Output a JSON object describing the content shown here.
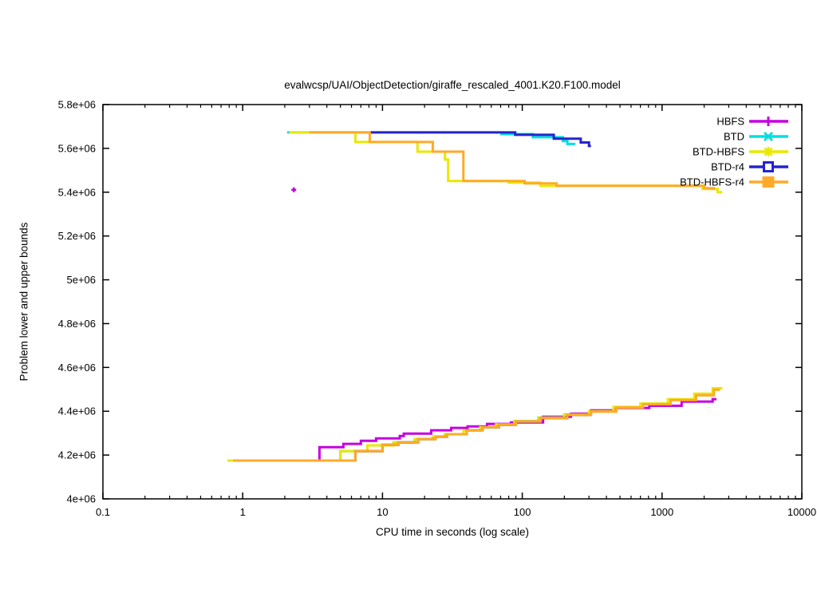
{
  "page": {
    "background": "#ffffff"
  },
  "chart_data": {
    "type": "line",
    "title": "evalwcsp/UAI/ObjectDetection/giraffe_rescaled_4001.K20.F100.model",
    "xlabel": "CPU time in seconds (log scale)",
    "ylabel": "Problem lower and upper bounds",
    "x_scale": "log",
    "xlim": [
      0.1,
      10000
    ],
    "ylim": [
      4000000,
      5800000
    ],
    "grid": false,
    "legend_position": "top-right-inside",
    "axis_color": "#000000",
    "text_color": "#000000",
    "x_ticks": [
      {
        "value": 0.1,
        "label": "0.1"
      },
      {
        "value": 1,
        "label": "1"
      },
      {
        "value": 10,
        "label": "10"
      },
      {
        "value": 100,
        "label": "100"
      },
      {
        "value": 1000,
        "label": "1000"
      },
      {
        "value": 10000,
        "label": "10000"
      }
    ],
    "x_minor_multiples": [
      2,
      3,
      4,
      5,
      6,
      7,
      8,
      9
    ],
    "y_ticks": [
      {
        "value": 4000000,
        "label": "4e+06"
      },
      {
        "value": 4200000,
        "label": "4.2e+06"
      },
      {
        "value": 4400000,
        "label": "4.4e+06"
      },
      {
        "value": 4600000,
        "label": "4.6e+06"
      },
      {
        "value": 4800000,
        "label": "4.8e+06"
      },
      {
        "value": 5000000,
        "label": "5e+06"
      },
      {
        "value": 5200000,
        "label": "5.2e+06"
      },
      {
        "value": 5400000,
        "label": "5.4e+06"
      },
      {
        "value": 5600000,
        "label": "5.6e+06"
      },
      {
        "value": 5800000,
        "label": "5.8e+06"
      }
    ],
    "notes": "Each method plots a stepped upper bound (top curves, ~5.67e6 descending) and a stepped lower bound (bottom curves rising from ~4.175e6). HBFS shows only a single upper-bound point near 2.3s at ~5.41e6. BTD and BTD-r4 lower bounds are overlapped (hidden) by BTD-HBFS and BTD-HBFS-r4 respectively.",
    "series": [
      {
        "name": "HBFS",
        "color": "#c400e0",
        "marker": "plus",
        "upper_point": [
          2.32,
          5411000
        ],
        "lower": [
          [
            2.3,
            4175000
          ],
          [
            3.54,
            4175000
          ],
          [
            3.54,
            4236000
          ],
          [
            5.25,
            4236000
          ],
          [
            5.25,
            4251000
          ],
          [
            7,
            4251000
          ],
          [
            7,
            4265000
          ],
          [
            9,
            4265000
          ],
          [
            9,
            4276000
          ],
          [
            13.3,
            4276000
          ],
          [
            13.3,
            4287000
          ],
          [
            14.2,
            4287000
          ],
          [
            14.2,
            4298000
          ],
          [
            22.3,
            4298000
          ],
          [
            22.3,
            4313000
          ],
          [
            31,
            4313000
          ],
          [
            31,
            4324000
          ],
          [
            40.6,
            4324000
          ],
          [
            40.6,
            4331000
          ],
          [
            56,
            4331000
          ],
          [
            56,
            4342000
          ],
          [
            83,
            4342000
          ],
          [
            83,
            4349000
          ],
          [
            141,
            4349000
          ],
          [
            141,
            4375000
          ],
          [
            223,
            4375000
          ],
          [
            223,
            4389000
          ],
          [
            310,
            4389000
          ],
          [
            310,
            4404000
          ],
          [
            460,
            4404000
          ],
          [
            460,
            4415000
          ],
          [
            810,
            4415000
          ],
          [
            810,
            4425000
          ],
          [
            1380,
            4425000
          ],
          [
            1380,
            4444000
          ],
          [
            2300,
            4444000
          ],
          [
            2300,
            4455000
          ],
          [
            2450,
            4455000
          ]
        ]
      },
      {
        "name": "BTD",
        "color": "#00e0e0",
        "marker": "cross",
        "upper": [
          [
            2.08,
            5673000
          ],
          [
            71,
            5673000
          ],
          [
            71,
            5665000
          ],
          [
            119,
            5665000
          ],
          [
            119,
            5651000
          ],
          [
            195,
            5651000
          ],
          [
            195,
            5633000
          ],
          [
            210,
            5633000
          ],
          [
            210,
            5620000
          ],
          [
            240,
            5620000
          ]
        ],
        "lower": [
          [
            0.78,
            4175000
          ],
          [
            5,
            4175000
          ],
          [
            5,
            4218000
          ],
          [
            7.8,
            4218000
          ],
          [
            7.8,
            4244000
          ],
          [
            12,
            4244000
          ],
          [
            12,
            4258000
          ],
          [
            17,
            4258000
          ],
          [
            17,
            4273000
          ],
          [
            23,
            4273000
          ],
          [
            23,
            4284000
          ],
          [
            28,
            4284000
          ],
          [
            28,
            4295000
          ],
          [
            38,
            4295000
          ],
          [
            38,
            4313000
          ],
          [
            50,
            4313000
          ],
          [
            50,
            4327000
          ],
          [
            65,
            4327000
          ],
          [
            65,
            4340000
          ],
          [
            88,
            4340000
          ],
          [
            88,
            4355000
          ],
          [
            130,
            4355000
          ],
          [
            130,
            4371000
          ],
          [
            200,
            4371000
          ],
          [
            200,
            4385000
          ],
          [
            235,
            4385000
          ]
        ],
        "lower_hidden_under": "BTD-HBFS"
      },
      {
        "name": "BTD-HBFS",
        "color": "#e8e800",
        "marker": "star",
        "upper": [
          [
            2.15,
            5673000
          ],
          [
            6.4,
            5673000
          ],
          [
            6.4,
            5629000
          ],
          [
            17.8,
            5629000
          ],
          [
            17.8,
            5585000
          ],
          [
            28,
            5585000
          ],
          [
            28,
            5549000
          ],
          [
            29.5,
            5549000
          ],
          [
            29.5,
            5451000
          ],
          [
            80,
            5451000
          ],
          [
            80,
            5444000
          ],
          [
            135,
            5444000
          ],
          [
            135,
            5429000
          ],
          [
            1950,
            5429000
          ],
          [
            1950,
            5415000
          ],
          [
            2500,
            5415000
          ],
          [
            2500,
            5400000
          ],
          [
            2700,
            5400000
          ]
        ],
        "lower": [
          [
            0.78,
            4175000
          ],
          [
            5,
            4175000
          ],
          [
            5,
            4218000
          ],
          [
            7.8,
            4218000
          ],
          [
            7.8,
            4244000
          ],
          [
            12,
            4244000
          ],
          [
            12,
            4258000
          ],
          [
            17,
            4258000
          ],
          [
            17,
            4273000
          ],
          [
            23,
            4273000
          ],
          [
            23,
            4284000
          ],
          [
            28,
            4284000
          ],
          [
            28,
            4295000
          ],
          [
            38,
            4295000
          ],
          [
            38,
            4313000
          ],
          [
            50,
            4313000
          ],
          [
            50,
            4327000
          ],
          [
            65,
            4327000
          ],
          [
            65,
            4340000
          ],
          [
            88,
            4340000
          ],
          [
            88,
            4355000
          ],
          [
            130,
            4355000
          ],
          [
            130,
            4371000
          ],
          [
            200,
            4371000
          ],
          [
            200,
            4385000
          ],
          [
            300,
            4385000
          ],
          [
            300,
            4400000
          ],
          [
            450,
            4400000
          ],
          [
            450,
            4420000
          ],
          [
            700,
            4420000
          ],
          [
            700,
            4435000
          ],
          [
            1100,
            4435000
          ],
          [
            1100,
            4455000
          ],
          [
            1700,
            4455000
          ],
          [
            1700,
            4480000
          ],
          [
            2300,
            4480000
          ],
          [
            2300,
            4505000
          ],
          [
            2700,
            4505000
          ]
        ]
      },
      {
        "name": "BTD-r4",
        "color": "#2424cc",
        "marker": "open-square",
        "upper": [
          [
            8.1,
            5673000
          ],
          [
            89,
            5673000
          ],
          [
            89,
            5662000
          ],
          [
            168,
            5662000
          ],
          [
            168,
            5644000
          ],
          [
            262,
            5644000
          ],
          [
            262,
            5627000
          ],
          [
            300,
            5627000
          ],
          [
            300,
            5611000
          ],
          [
            310,
            5611000
          ]
        ],
        "lower": [
          [
            0.86,
            4175000
          ],
          [
            6.4,
            4175000
          ],
          [
            6.4,
            4218000
          ],
          [
            10,
            4218000
          ],
          [
            10,
            4247000
          ],
          [
            13,
            4247000
          ],
          [
            13,
            4258000
          ],
          [
            18,
            4258000
          ],
          [
            18,
            4273000
          ],
          [
            24,
            4273000
          ],
          [
            24,
            4284000
          ],
          [
            29,
            4284000
          ],
          [
            29,
            4295000
          ],
          [
            40,
            4295000
          ],
          [
            40,
            4313000
          ],
          [
            52,
            4313000
          ],
          [
            52,
            4327000
          ],
          [
            68,
            4327000
          ],
          [
            68,
            4338000
          ],
          [
            90,
            4338000
          ],
          [
            90,
            4353000
          ],
          [
            135,
            4353000
          ],
          [
            135,
            4369000
          ],
          [
            210,
            4369000
          ],
          [
            210,
            4383000
          ],
          [
            305,
            4383000
          ]
        ],
        "lower_hidden_under": "BTD-HBFS-r4"
      },
      {
        "name": "BTD-HBFS-r4",
        "color": "#ffaa28",
        "marker": "filled-square",
        "upper": [
          [
            3.0,
            5673000
          ],
          [
            8.1,
            5673000
          ],
          [
            8.1,
            5629000
          ],
          [
            22.9,
            5629000
          ],
          [
            22.9,
            5585000
          ],
          [
            37.9,
            5585000
          ],
          [
            37.9,
            5451000
          ],
          [
            104,
            5451000
          ],
          [
            104,
            5440000
          ],
          [
            176,
            5440000
          ],
          [
            176,
            5429000
          ],
          [
            2000,
            5429000
          ],
          [
            2000,
            5418000
          ],
          [
            2350,
            5418000
          ],
          [
            2350,
            5411000
          ]
        ],
        "lower": [
          [
            0.86,
            4175000
          ],
          [
            6.4,
            4175000
          ],
          [
            6.4,
            4218000
          ],
          [
            10,
            4218000
          ],
          [
            10,
            4247000
          ],
          [
            13,
            4247000
          ],
          [
            13,
            4258000
          ],
          [
            18,
            4258000
          ],
          [
            18,
            4273000
          ],
          [
            24,
            4273000
          ],
          [
            24,
            4284000
          ],
          [
            29,
            4284000
          ],
          [
            29,
            4295000
          ],
          [
            40,
            4295000
          ],
          [
            40,
            4313000
          ],
          [
            52,
            4313000
          ],
          [
            52,
            4327000
          ],
          [
            68,
            4327000
          ],
          [
            68,
            4338000
          ],
          [
            90,
            4338000
          ],
          [
            90,
            4353000
          ],
          [
            135,
            4353000
          ],
          [
            135,
            4369000
          ],
          [
            210,
            4369000
          ],
          [
            210,
            4383000
          ],
          [
            310,
            4383000
          ],
          [
            310,
            4398000
          ],
          [
            470,
            4398000
          ],
          [
            470,
            4417000
          ],
          [
            730,
            4417000
          ],
          [
            730,
            4432000
          ],
          [
            1150,
            4432000
          ],
          [
            1150,
            4451000
          ],
          [
            1750,
            4451000
          ],
          [
            1750,
            4473000
          ],
          [
            2350,
            4473000
          ],
          [
            2350,
            4498000
          ],
          [
            2600,
            4498000
          ]
        ]
      }
    ]
  }
}
